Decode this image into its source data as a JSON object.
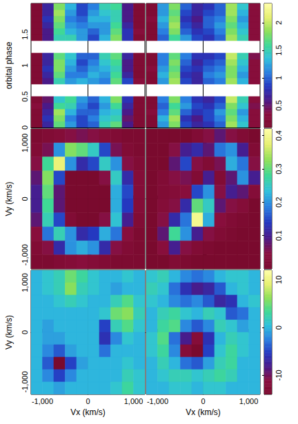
{
  "chart_data": [
    {
      "type": "heatmap",
      "ylabel": "orbital phase",
      "tick_labels": "y",
      "xlim": [
        -1250,
        1250
      ],
      "ylim": [
        0,
        2
      ],
      "xticks": [
        -1000,
        0,
        1000
      ],
      "yticks": [
        0,
        0.5,
        1,
        1.5
      ],
      "x_centers": [
        -1125,
        -875,
        -625,
        -375,
        -125,
        125,
        375,
        625,
        875,
        1125
      ],
      "y_centers": [
        0.05,
        0.15,
        0.25,
        0.35,
        0.45,
        0.55,
        0.65,
        0.75,
        0.85,
        0.95,
        1.05,
        1.15,
        1.25,
        1.35,
        1.45,
        1.55,
        1.65,
        1.75,
        1.85,
        1.95
      ],
      "cells": [
        [
          0.2,
          0.7,
          1.7,
          1.2,
          0.9,
          1.0,
          1.5,
          1.7,
          0.6,
          0.2
        ],
        [
          0.2,
          0.8,
          1.8,
          1.1,
          0.9,
          1.1,
          1.4,
          1.5,
          0.5,
          0.2
        ],
        [
          0.2,
          0.7,
          1.9,
          1.3,
          1.0,
          1.0,
          1.3,
          1.4,
          0.6,
          0.2
        ],
        [
          0.3,
          0.6,
          1.6,
          1.5,
          1.1,
          0.9,
          1.2,
          1.6,
          0.7,
          0.2
        ],
        [
          0.2,
          0.5,
          1.4,
          1.6,
          1.2,
          1.0,
          1.3,
          1.8,
          0.8,
          0.2
        ],
        null,
        null,
        [
          0.2,
          0.6,
          1.5,
          1.2,
          1.3,
          1.2,
          1.1,
          1.7,
          0.9,
          0.3
        ],
        [
          0.2,
          0.7,
          1.7,
          1.1,
          1.1,
          1.3,
          1.2,
          1.6,
          0.7,
          0.2
        ],
        [
          0.2,
          0.8,
          1.8,
          1.2,
          1.0,
          1.2,
          1.3,
          1.5,
          0.6,
          0.2
        ],
        [
          0.2,
          0.7,
          1.8,
          1.3,
          0.9,
          1.1,
          1.4,
          1.6,
          0.6,
          0.2
        ],
        [
          0.2,
          0.7,
          1.7,
          1.4,
          1.0,
          1.0,
          1.5,
          1.7,
          0.7,
          0.2
        ],
        null,
        null,
        [
          0.2,
          0.6,
          1.5,
          1.5,
          1.2,
          0.9,
          1.3,
          1.8,
          0.8,
          0.2
        ],
        [
          0.2,
          0.6,
          1.6,
          1.3,
          1.2,
          1.0,
          1.2,
          1.7,
          0.8,
          0.3
        ],
        [
          0.2,
          0.7,
          1.7,
          1.2,
          1.1,
          1.2,
          1.2,
          1.6,
          0.7,
          0.2
        ],
        [
          0.2,
          0.8,
          1.8,
          1.1,
          1.0,
          1.3,
          1.3,
          1.5,
          0.6,
          0.2
        ],
        [
          0.2,
          0.7,
          1.9,
          1.2,
          0.9,
          1.2,
          1.4,
          1.5,
          0.6,
          0.2
        ],
        [
          0.2,
          0.7,
          1.8,
          1.3,
          0.9,
          1.1,
          1.5,
          1.6,
          0.6,
          0.2
        ]
      ]
    },
    {
      "type": "heatmap",
      "tick_labels": false,
      "xlim": [
        -1250,
        1250
      ],
      "ylim": [
        0,
        2
      ],
      "xticks": [
        -1000,
        0,
        1000
      ],
      "yticks": [
        0,
        0.5,
        1,
        1.5
      ],
      "x_centers": [
        -1125,
        -875,
        -625,
        -375,
        -125,
        125,
        375,
        625,
        875,
        1125
      ],
      "y_centers": [
        0.05,
        0.15,
        0.25,
        0.35,
        0.45,
        0.55,
        0.65,
        0.75,
        0.85,
        0.95,
        1.05,
        1.15,
        1.25,
        1.35,
        1.45,
        1.55,
        1.65,
        1.75,
        1.85,
        1.95
      ],
      "cells": [
        [
          0.2,
          1.2,
          1.8,
          0.9,
          0.7,
          0.8,
          1.0,
          1.9,
          1.4,
          0.3
        ],
        [
          0.2,
          1.3,
          1.9,
          0.8,
          0.6,
          0.9,
          1.1,
          1.8,
          1.3,
          0.3
        ],
        [
          0.3,
          1.1,
          1.7,
          1.0,
          0.8,
          0.9,
          1.2,
          1.7,
          1.2,
          0.3
        ],
        [
          0.2,
          1.0,
          1.6,
          1.2,
          0.9,
          0.8,
          1.0,
          1.8,
          1.4,
          0.4
        ],
        [
          0.2,
          1.1,
          1.8,
          1.1,
          0.8,
          0.7,
          0.9,
          2.0,
          1.5,
          0.3
        ],
        null,
        null,
        [
          0.2,
          1.2,
          1.9,
          0.9,
          0.7,
          1.0,
          1.1,
          1.9,
          1.3,
          0.3
        ],
        [
          0.2,
          1.3,
          1.8,
          0.8,
          0.7,
          1.1,
          1.2,
          1.8,
          1.2,
          0.3
        ],
        [
          0.3,
          1.2,
          1.7,
          0.9,
          0.8,
          1.0,
          1.1,
          1.8,
          1.3,
          0.3
        ],
        [
          0.2,
          1.1,
          1.8,
          1.0,
          0.7,
          0.9,
          1.0,
          1.9,
          1.4,
          0.3
        ],
        [
          0.2,
          1.1,
          1.7,
          1.1,
          0.8,
          0.8,
          0.9,
          2.0,
          1.5,
          0.4
        ],
        null,
        null,
        [
          0.2,
          1.0,
          1.6,
          1.2,
          0.9,
          0.8,
          1.0,
          1.9,
          1.5,
          0.3
        ],
        [
          0.2,
          1.1,
          1.8,
          1.0,
          0.8,
          0.9,
          1.1,
          1.8,
          1.4,
          0.3
        ],
        [
          0.2,
          1.2,
          1.9,
          0.9,
          0.7,
          1.0,
          1.2,
          1.7,
          1.3,
          0.3
        ],
        [
          0.3,
          1.3,
          1.8,
          0.8,
          0.6,
          1.0,
          1.1,
          1.8,
          1.2,
          0.3
        ],
        [
          0.2,
          1.2,
          1.7,
          0.9,
          0.7,
          0.9,
          1.0,
          1.9,
          1.3,
          0.3
        ],
        [
          0.2,
          1.2,
          1.8,
          1.0,
          0.7,
          0.8,
          1.0,
          1.9,
          1.4,
          0.3
        ]
      ],
      "colorbar": {
        "lim": [
          0.1,
          2.35
        ],
        "ticks": [
          0.5,
          1,
          1.5,
          2
        ]
      }
    },
    {
      "type": "heatmap",
      "ylabel": "Vy (km/s)",
      "tick_labels": "y",
      "xlim": [
        -1250,
        1250
      ],
      "ylim": [
        -1250,
        1250
      ],
      "xticks": [
        -1000,
        0,
        1000
      ],
      "yticks": [
        -1000,
        0,
        1000
      ],
      "x_centers": [
        -1125,
        -875,
        -625,
        -375,
        -125,
        125,
        375,
        625,
        875,
        1125
      ],
      "y_centers": [
        1125,
        875,
        625,
        375,
        125,
        -125,
        -375,
        -625,
        -875,
        -1125
      ],
      "cells": [
        [
          0.01,
          0.02,
          0.03,
          0.05,
          0.06,
          0.05,
          0.03,
          0.02,
          0.01,
          0.01
        ],
        [
          0.02,
          0.06,
          0.2,
          0.32,
          0.3,
          0.25,
          0.15,
          0.06,
          0.02,
          0.01
        ],
        [
          0.05,
          0.28,
          0.38,
          0.2,
          0.12,
          0.15,
          0.25,
          0.2,
          0.05,
          0.02
        ],
        [
          0.08,
          0.32,
          0.15,
          0.0,
          0.0,
          0.0,
          0.05,
          0.25,
          0.12,
          0.03
        ],
        [
          0.1,
          0.3,
          0.08,
          0.0,
          0.0,
          0.0,
          0.0,
          0.22,
          0.15,
          0.03
        ],
        [
          0.1,
          0.28,
          0.08,
          0.0,
          0.0,
          0.0,
          0.0,
          0.22,
          0.14,
          0.03
        ],
        [
          0.08,
          0.26,
          0.15,
          0.02,
          0.0,
          0.0,
          0.05,
          0.24,
          0.1,
          0.02
        ],
        [
          0.04,
          0.18,
          0.26,
          0.2,
          0.12,
          0.14,
          0.22,
          0.18,
          0.04,
          0.01
        ],
        [
          0.02,
          0.05,
          0.12,
          0.2,
          0.22,
          0.2,
          0.12,
          0.05,
          0.02,
          0.01
        ],
        [
          0.01,
          0.01,
          0.02,
          0.03,
          0.04,
          0.03,
          0.02,
          0.01,
          0.01,
          0.01
        ]
      ]
    },
    {
      "type": "heatmap",
      "tick_labels": false,
      "xlim": [
        -1250,
        1250
      ],
      "ylim": [
        -1250,
        1250
      ],
      "xticks": [
        -1000,
        0,
        1000
      ],
      "yticks": [
        -1000,
        0,
        1000
      ],
      "x_centers": [
        -1125,
        -875,
        -625,
        -375,
        -125,
        125,
        375,
        625,
        875,
        1125
      ],
      "y_centers": [
        1125,
        875,
        625,
        375,
        125,
        -125,
        -375,
        -625,
        -875,
        -1125
      ],
      "cells": [
        [
          0.0,
          0.0,
          0.0,
          0.0,
          0.02,
          0.05,
          0.08,
          0.05,
          0.02,
          0.0
        ],
        [
          0.0,
          0.0,
          0.05,
          0.1,
          0.12,
          0.08,
          0.18,
          0.2,
          0.1,
          0.02
        ],
        [
          0.0,
          0.0,
          0.08,
          0.15,
          0.05,
          0.02,
          0.06,
          0.22,
          0.18,
          0.05
        ],
        [
          0.0,
          0.02,
          0.05,
          0.06,
          0.02,
          0.1,
          0.02,
          0.08,
          0.2,
          0.1
        ],
        [
          0.0,
          0.02,
          0.03,
          0.04,
          0.15,
          0.2,
          0.05,
          0.1,
          0.08,
          0.03
        ],
        [
          0.0,
          0.03,
          0.05,
          0.12,
          0.3,
          0.25,
          0.08,
          0.05,
          0.03,
          0.0
        ],
        [
          0.0,
          0.05,
          0.12,
          0.18,
          0.4,
          0.22,
          0.04,
          0.02,
          0.01,
          0.0
        ],
        [
          0.0,
          0.08,
          0.28,
          0.2,
          0.1,
          0.05,
          0.02,
          0.01,
          0.0,
          0.0
        ],
        [
          0.0,
          0.04,
          0.1,
          0.05,
          0.02,
          0.01,
          0.0,
          0.0,
          0.0,
          0.0
        ],
        [
          0.0,
          0.0,
          0.02,
          0.01,
          0.0,
          0.0,
          0.0,
          0.0,
          0.0,
          0.0
        ]
      ],
      "colorbar": {
        "lim": [
          0,
          0.42
        ],
        "ticks": [
          0.1,
          0.2,
          0.3,
          0.4
        ]
      }
    },
    {
      "type": "heatmap",
      "xlabel": "Vx (km/s)",
      "ylabel": "Vy (km/s)",
      "tick_labels": true,
      "xlim": [
        -1250,
        1250
      ],
      "ylim": [
        -1250,
        1250
      ],
      "xticks": [
        -1000,
        0,
        1000
      ],
      "yticks": [
        -1000,
        0,
        1000
      ],
      "x_centers": [
        -1125,
        -875,
        -625,
        -375,
        -125,
        125,
        375,
        625,
        875,
        1125
      ],
      "y_centers": [
        1125,
        875,
        625,
        375,
        125,
        -125,
        -375,
        -625,
        -875,
        -1125
      ],
      "cells": [
        [
          0,
          1,
          2,
          5,
          3,
          1,
          0,
          0,
          1,
          0
        ],
        [
          0,
          1,
          2,
          6,
          2,
          1,
          0,
          -1,
          0,
          0
        ],
        [
          0,
          0,
          1,
          2,
          1,
          0,
          0,
          2,
          4,
          1
        ],
        [
          0,
          0,
          0,
          0,
          0,
          0,
          1,
          5,
          6,
          2
        ],
        [
          0,
          -1,
          0,
          0,
          0,
          0,
          -5,
          2,
          4,
          1
        ],
        [
          0,
          -1,
          -1,
          0,
          0,
          0,
          -6,
          -2,
          1,
          0
        ],
        [
          0,
          -2,
          -4,
          -1,
          0,
          0,
          -3,
          0,
          0,
          0
        ],
        [
          0,
          -4,
          -14,
          -5,
          -1,
          0,
          0,
          0,
          1,
          0
        ],
        [
          0,
          -2,
          -5,
          -2,
          0,
          0,
          0,
          0,
          2,
          1
        ],
        [
          0,
          0,
          -1,
          0,
          0,
          0,
          0,
          1,
          3,
          1
        ]
      ]
    },
    {
      "type": "heatmap",
      "xlabel": "Vx (km/s)",
      "tick_labels": "x",
      "xlim": [
        -1250,
        1250
      ],
      "ylim": [
        -1250,
        1250
      ],
      "xticks": [
        -1000,
        0,
        1000
      ],
      "yticks": [
        -1000,
        0,
        1000
      ],
      "x_centers": [
        -1125,
        -875,
        -625,
        -375,
        -125,
        125,
        375,
        625,
        875,
        1125
      ],
      "y_centers": [
        1125,
        875,
        625,
        375,
        125,
        -125,
        -375,
        -625,
        -875,
        -1125
      ],
      "cells": [
        [
          1,
          2,
          0,
          -2,
          -3,
          -2,
          0,
          1,
          1,
          0
        ],
        [
          2,
          1,
          -3,
          -6,
          -8,
          -7,
          -4,
          0,
          1,
          0
        ],
        [
          1,
          0,
          -2,
          -3,
          -2,
          -4,
          -7,
          -6,
          0,
          1
        ],
        [
          0,
          2,
          3,
          1,
          0,
          2,
          1,
          -4,
          -3,
          0
        ],
        [
          0,
          3,
          4,
          -2,
          -4,
          -2,
          2,
          1,
          -1,
          0
        ],
        [
          1,
          4,
          -3,
          -8,
          -12,
          -6,
          0,
          2,
          1,
          0
        ],
        [
          1,
          3,
          -2,
          -12,
          -14,
          -5,
          1,
          3,
          1,
          0
        ],
        [
          0,
          2,
          0,
          -3,
          -4,
          -1,
          2,
          3,
          0,
          0
        ],
        [
          0,
          1,
          2,
          2,
          1,
          2,
          3,
          2,
          0,
          0
        ],
        [
          0,
          0,
          1,
          1,
          0,
          1,
          1,
          0,
          0,
          0
        ]
      ],
      "colorbar": {
        "lim": [
          -14,
          12
        ],
        "ticks": [
          -10,
          0,
          10
        ]
      }
    }
  ]
}
